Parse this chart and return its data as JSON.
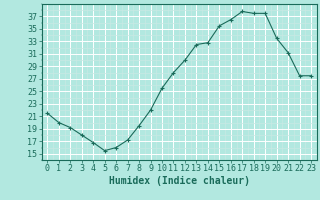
{
  "x": [
    0,
    1,
    2,
    3,
    4,
    5,
    6,
    7,
    8,
    9,
    10,
    11,
    12,
    13,
    14,
    15,
    16,
    17,
    18,
    19,
    20,
    21,
    22,
    23
  ],
  "y": [
    21.5,
    20.0,
    19.2,
    18.0,
    16.8,
    15.5,
    16.0,
    17.2,
    19.5,
    22.0,
    25.5,
    28.0,
    30.0,
    32.5,
    32.8,
    35.5,
    36.5,
    37.8,
    37.5,
    37.5,
    33.5,
    31.2,
    27.5,
    27.5
  ],
  "line_color": "#1a6b5a",
  "marker_color": "#1a6b5a",
  "bg_color": "#b2e8e0",
  "grid_major_color": "#ffffff",
  "grid_minor_color": "#c8e8e4",
  "xlabel": "Humidex (Indice chaleur)",
  "xlim": [
    -0.5,
    23.5
  ],
  "ylim": [
    14,
    39
  ],
  "yticks": [
    15,
    17,
    19,
    21,
    23,
    25,
    27,
    29,
    31,
    33,
    35,
    37
  ],
  "xticks": [
    0,
    1,
    2,
    3,
    4,
    5,
    6,
    7,
    8,
    9,
    10,
    11,
    12,
    13,
    14,
    15,
    16,
    17,
    18,
    19,
    20,
    21,
    22,
    23
  ],
  "xlabel_fontsize": 7,
  "tick_fontsize": 6
}
